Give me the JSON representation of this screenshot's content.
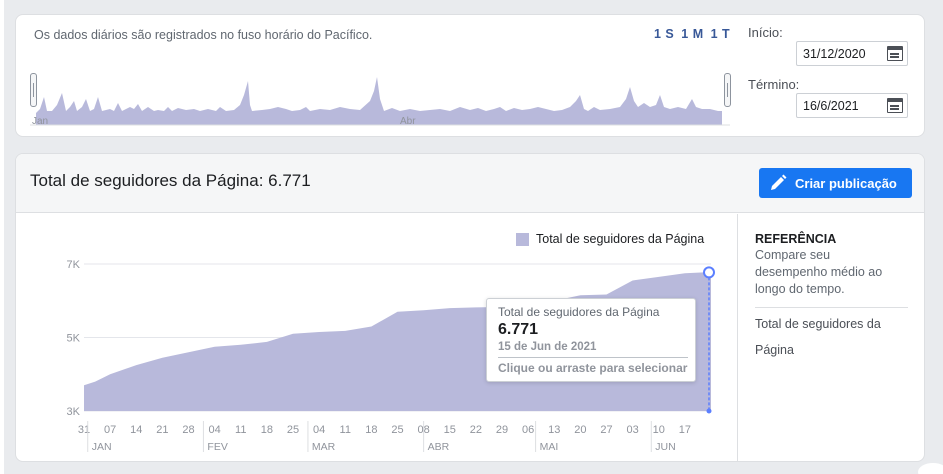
{
  "date_range": {
    "timezone_note": "Os dados diários são registrados no fuso horário do Pacífico.",
    "range_buttons": [
      "1 S",
      "1 M",
      "1 T"
    ],
    "start_label": "Início:",
    "start_value": "31/12/2020",
    "end_label": "Término:",
    "end_value": "16/6/2021",
    "mini_axis_labels": [
      "Jan",
      "Abr"
    ]
  },
  "followers": {
    "title": "Total de seguidores da Página: 6.771",
    "create_button": "Criar publicação",
    "legend": "Total de seguidores da Página",
    "tooltip": {
      "title": "Total de seguidores da Página",
      "value": "6.771",
      "date": "15 de Jun de 2021",
      "hint": "Clique ou arraste para selecionar"
    }
  },
  "reference": {
    "title": "REFERÊNCIA",
    "description": "Compare seu desempenho médio ao longo do tempo.",
    "item": "Total de seguidores da Página"
  },
  "colors": {
    "accent": "#1877f2",
    "area_fill": "#b8b9db",
    "marker": "#5b7fff"
  },
  "chart_data": {
    "type": "area",
    "series": [
      {
        "name": "Total de seguidores da Página"
      }
    ],
    "x": [
      "31",
      "07",
      "14",
      "21",
      "28",
      "04",
      "11",
      "18",
      "25",
      "04",
      "11",
      "18",
      "25",
      "08",
      "15",
      "22",
      "29",
      "06",
      "13",
      "20",
      "27",
      "03",
      "10",
      "17"
    ],
    "x_month_labels": [
      "JAN",
      "FEV",
      "MAR",
      "ABR",
      "MAI",
      "JUN"
    ],
    "y_ticks": [
      "3K",
      "5K",
      "7K"
    ],
    "ylim": [
      3000,
      7000
    ],
    "points": [
      [
        "2020-12-31",
        3700
      ],
      [
        "2021-01-03",
        3800
      ],
      [
        "2021-01-07",
        4000
      ],
      [
        "2021-01-14",
        4250
      ],
      [
        "2021-01-21",
        4450
      ],
      [
        "2021-01-28",
        4600
      ],
      [
        "2021-02-04",
        4750
      ],
      [
        "2021-02-11",
        4800
      ],
      [
        "2021-02-18",
        4880
      ],
      [
        "2021-02-25",
        5100
      ],
      [
        "2021-03-04",
        5150
      ],
      [
        "2021-03-11",
        5180
      ],
      [
        "2021-03-18",
        5300
      ],
      [
        "2021-03-25",
        5700
      ],
      [
        "2021-04-01",
        5740
      ],
      [
        "2021-04-08",
        5800
      ],
      [
        "2021-04-15",
        5820
      ],
      [
        "2021-04-22",
        5830
      ],
      [
        "2021-04-29",
        5950
      ],
      [
        "2021-05-06",
        6000
      ],
      [
        "2021-05-13",
        6150
      ],
      [
        "2021-05-20",
        6170
      ],
      [
        "2021-05-27",
        6550
      ],
      [
        "2021-06-03",
        6650
      ],
      [
        "2021-06-10",
        6750
      ],
      [
        "2021-06-15",
        6771
      ],
      [
        "2021-06-17",
        6771
      ]
    ],
    "highlighted_point": [
      "2021-06-15",
      6771
    ]
  }
}
